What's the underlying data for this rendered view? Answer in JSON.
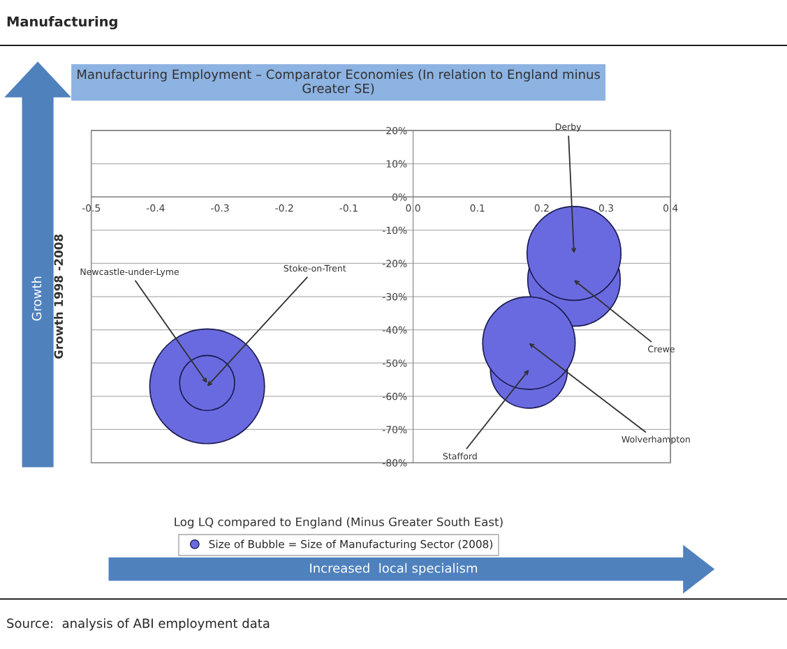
{
  "chart_data": {
    "type": "bubble",
    "title": "Manufacturing",
    "subtitle": "Manufacturing Employment – Comparator Economies (In relation to England minus Greater SE)",
    "xlabel": "Log LQ compared to England (Minus Greater South East)",
    "ylabel": "Growth 1998 -2008",
    "series": [
      {
        "name": "Size of Bubble = Size of Manufacturing Sector (2008)",
        "color": "#6a6ae0",
        "x": [
          -0.32,
          -0.32,
          0.25,
          0.25,
          0.18,
          0.18
        ],
        "values": [
          -57,
          -56,
          -25,
          -17,
          -52,
          -44
        ],
        "sizes": [
          1,
          0.23,
          0.65,
          0.67,
          0.45,
          0.65
        ]
      }
    ],
    "xlim": [
      -0.5,
      0.4
    ],
    "xticks": [
      {
        "value": -0.5,
        "label": "-0.5"
      },
      {
        "value": -0.4,
        "label": "-0.4"
      },
      {
        "value": -0.3,
        "label": "-0.3"
      },
      {
        "value": -0.2,
        "label": "-0.2"
      },
      {
        "value": -0.1,
        "label": "-0.1"
      },
      {
        "value": 0,
        "label": "0.0"
      },
      0.1,
      0.2,
      0.3,
      0.4
    ],
    "ylim": [
      -80,
      20
    ],
    "yticks": [
      {
        "value": 20,
        "label": "20%"
      },
      {
        "value": 10,
        "label": "10%"
      },
      {
        "value": 0,
        "label": "0%"
      },
      {
        "value": -10,
        "label": "-10%"
      },
      {
        "value": -20,
        "label": "-20%"
      },
      {
        "value": -30,
        "label": "-30%"
      },
      {
        "value": -40,
        "label": "-40%"
      },
      {
        "value": -50,
        "label": "-50%"
      },
      {
        "value": -60,
        "label": "-60%"
      },
      {
        "value": -70,
        "label": "-70%"
      },
      {
        "value": -80,
        "label": "-80%"
      }
    ],
    "grid": "y",
    "legend": "bottom",
    "annotations": [
      {
        "text": "Stoke-on-Trent",
        "x": -0.32,
        "y": -57
      },
      {
        "text": "Newcastle-under-Lyme",
        "x": -0.32,
        "y": -56
      },
      {
        "text": "Crewe",
        "x": 0.25,
        "y": -25
      },
      {
        "text": "Derby",
        "x": 0.25,
        "y": -17
      },
      {
        "text": "Stafford",
        "x": 0.18,
        "y": -52
      },
      {
        "text": "Wolverhampton",
        "x": 0.18,
        "y": -44
      },
      "Growth",
      "Increased  local specialism",
      "Source:  analysis of ABI employment data"
    ]
  }
}
